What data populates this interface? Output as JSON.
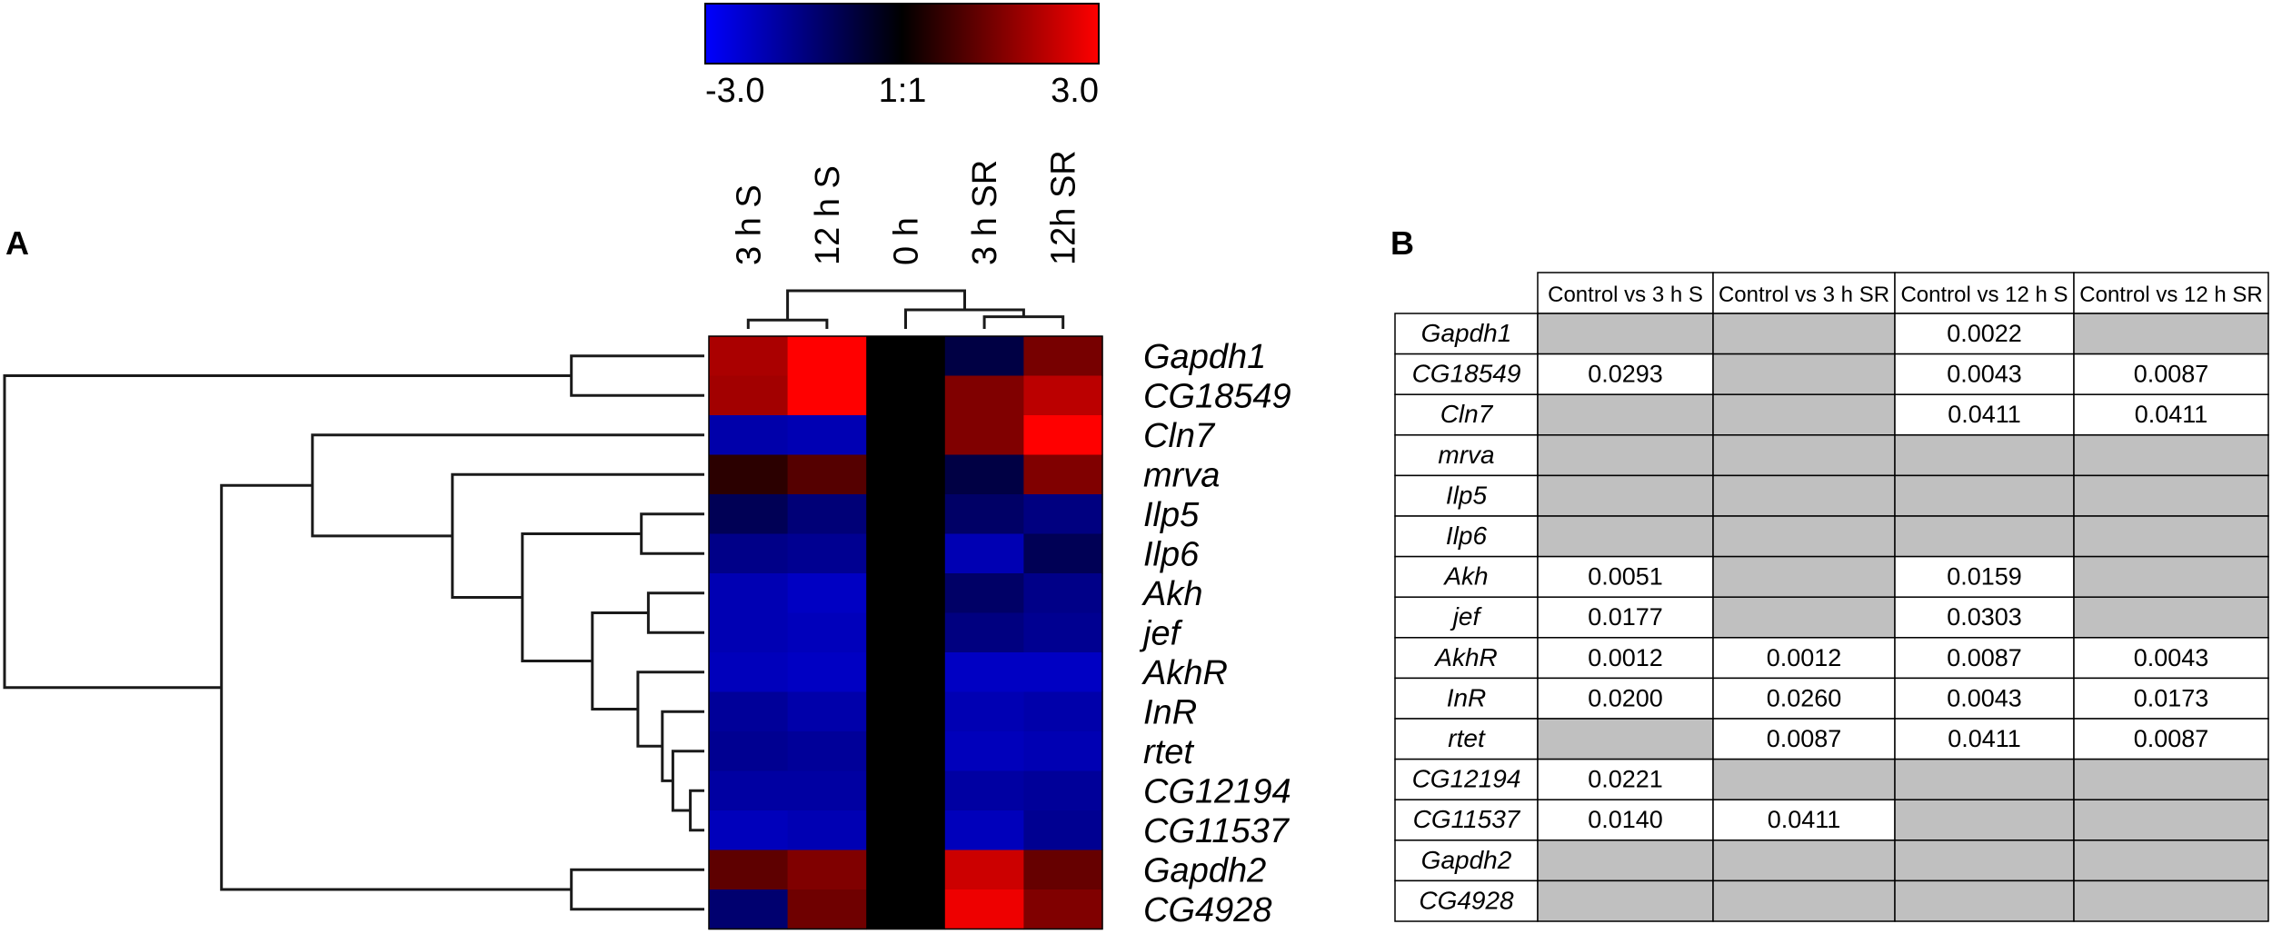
{
  "panel_labels": {
    "a": "A",
    "b": "B"
  },
  "colors": {
    "low": "#0000ff",
    "mid": "#000000",
    "high": "#ff0000",
    "empty_cell": "#c0c0c0",
    "cell_bg": "#ffffff",
    "line": "#1a1a1a"
  },
  "chart_data": [
    {
      "type": "heatmap",
      "color_scale": {
        "min": -3.0,
        "max": 3.0,
        "min_label": "-3.0",
        "mid_label": "1:1",
        "max_label": "3.0"
      },
      "columns": [
        "3 h S",
        "12 h S",
        "0 h",
        "3 h SR",
        "12h SR"
      ],
      "rows": [
        "Gapdh1",
        "CG18549",
        "Cln7",
        "mrva",
        "Ilp5",
        "Ilp6",
        "Akh",
        "jef",
        "AkhR",
        "InR",
        "rtet",
        "CG12194",
        "CG11537",
        "Gapdh2",
        "CG4928"
      ],
      "values": [
        [
          2.0,
          3.0,
          0,
          -0.8,
          1.4
        ],
        [
          1.9,
          3.0,
          0,
          1.5,
          2.2
        ],
        [
          -2.0,
          -2.1,
          0,
          1.5,
          3.0
        ],
        [
          0.5,
          1.0,
          0,
          -0.8,
          1.5
        ],
        [
          -1.0,
          -1.4,
          0,
          -1.2,
          -1.5
        ],
        [
          -1.6,
          -1.7,
          0,
          -2.1,
          -1.0
        ],
        [
          -2.1,
          -2.3,
          0,
          -1.2,
          -1.6
        ],
        [
          -2.1,
          -2.2,
          0,
          -1.5,
          -1.7
        ],
        [
          -2.2,
          -2.3,
          0,
          -2.3,
          -2.3
        ],
        [
          -1.8,
          -2.0,
          0,
          -2.1,
          -2.0
        ],
        [
          -1.7,
          -1.8,
          0,
          -2.2,
          -2.1
        ],
        [
          -1.9,
          -1.9,
          0,
          -1.9,
          -1.8
        ],
        [
          -2.2,
          -2.1,
          0,
          -2.2,
          -1.7
        ],
        [
          1.1,
          1.5,
          0,
          2.4,
          1.2
        ],
        [
          -1.3,
          1.3,
          0,
          2.8,
          1.5
        ]
      ],
      "column_dendrogram": [
        {
          "a": 0,
          "b": 1,
          "h": 0.23
        },
        {
          "a": 3,
          "b": 4,
          "h": 0.32
        },
        {
          "a": 2,
          "b": "n1",
          "h": 0.5
        },
        {
          "a": "n0",
          "b": "n2",
          "h": 1.0
        }
      ],
      "row_dendrogram": [
        {
          "a": 11,
          "b": 12,
          "h": 0.02
        },
        {
          "a": 10,
          "b": "n0",
          "h": 0.045
        },
        {
          "a": 9,
          "b": "n1",
          "h": 0.06
        },
        {
          "a": 6,
          "b": 7,
          "h": 0.08
        },
        {
          "a": 8,
          "b": "n2",
          "h": 0.095
        },
        {
          "a": 4,
          "b": 5,
          "h": 0.09
        },
        {
          "a": "n3",
          "b": "n4",
          "h": 0.16
        },
        {
          "a": 0,
          "b": 1,
          "h": 0.19
        },
        {
          "a": 13,
          "b": 14,
          "h": 0.19
        },
        {
          "a": "n5",
          "b": "n6",
          "h": 0.26
        },
        {
          "a": 3,
          "b": "n9",
          "h": 0.36
        },
        {
          "a": 2,
          "b": "n10",
          "h": 0.56
        },
        {
          "a": "n11",
          "b": "n8",
          "h": 0.69
        },
        {
          "a": "n7",
          "b": "n12",
          "h": 1.0
        }
      ]
    },
    {
      "type": "table",
      "columns": [
        "Control vs 3 h S",
        "Control vs 3 h SR",
        "Control vs 12 h S",
        "Control vs 12 h SR"
      ],
      "rows": [
        {
          "gene": "Gapdh1",
          "values": [
            null,
            null,
            "0.0022",
            null
          ]
        },
        {
          "gene": "CG18549",
          "values": [
            "0.0293",
            null,
            "0.0043",
            "0.0087"
          ]
        },
        {
          "gene": "Cln7",
          "values": [
            null,
            null,
            "0.0411",
            "0.0411"
          ]
        },
        {
          "gene": "mrva",
          "values": [
            null,
            null,
            null,
            null
          ]
        },
        {
          "gene": "Ilp5",
          "values": [
            null,
            null,
            null,
            null
          ]
        },
        {
          "gene": "Ilp6",
          "values": [
            null,
            null,
            null,
            null
          ]
        },
        {
          "gene": "Akh",
          "values": [
            "0.0051",
            null,
            "0.0159",
            null
          ]
        },
        {
          "gene": "jef",
          "values": [
            "0.0177",
            null,
            "0.0303",
            null
          ]
        },
        {
          "gene": "AkhR",
          "values": [
            "0.0012",
            "0.0012",
            "0.0087",
            "0.0043"
          ]
        },
        {
          "gene": "InR",
          "values": [
            "0.0200",
            "0.0260",
            "0.0043",
            "0.0173"
          ]
        },
        {
          "gene": "rtet",
          "values": [
            null,
            "0.0087",
            "0.0411",
            "0.0087"
          ]
        },
        {
          "gene": "CG12194",
          "values": [
            "0.0221",
            null,
            null,
            null
          ]
        },
        {
          "gene": "CG11537",
          "values": [
            "0.0140",
            "0.0411",
            null,
            null
          ]
        },
        {
          "gene": "Gapdh2",
          "values": [
            null,
            null,
            null,
            null
          ]
        },
        {
          "gene": "CG4928",
          "values": [
            null,
            null,
            null,
            null
          ]
        }
      ]
    }
  ]
}
